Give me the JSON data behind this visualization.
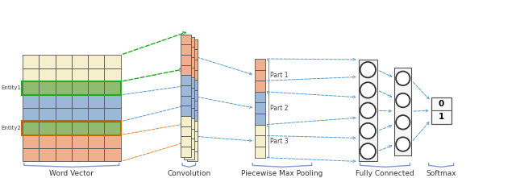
{
  "bg_color": "#ffffff",
  "wv_row_colors": [
    "#f5efcc",
    "#f5efcc",
    "#8fbc6f",
    "#9cb8d8",
    "#9cb8d8",
    "#8fbc6f",
    "#f0b090",
    "#f0b090"
  ],
  "conv_colors_top": [
    "#f5efcc",
    "#f5efcc",
    "#f5efcc",
    "#f5efcc",
    "#f5efcc"
  ],
  "conv_colors_mid": [
    "#9cb8d8",
    "#9cb8d8",
    "#9cb8d8",
    "#9cb8d8"
  ],
  "conv_colors_bot": [
    "#f0b090",
    "#f0b090",
    "#f0b090",
    "#f0b090",
    "#f0b090"
  ],
  "pool_colors": [
    "#f5efcc",
    "#f5efcc",
    "#f5efcc",
    "#9cb8d8",
    "#9cb8d8",
    "#9cb8d8",
    "#f0b090",
    "#f0b090",
    "#f0b090"
  ],
  "labels": {
    "word_vector": "Word Vector",
    "convolution": "Convolution",
    "piecewise": "Piecewise Max Pooling",
    "fully_connected": "Fully Connected",
    "softmax": "Softmax"
  },
  "part_labels": [
    "Part 1",
    "Part 2",
    "Part 3"
  ],
  "green": "#22aa22",
  "blue": "#5599cc",
  "orange": "#dd8833",
  "brace_color": "#8899cc"
}
